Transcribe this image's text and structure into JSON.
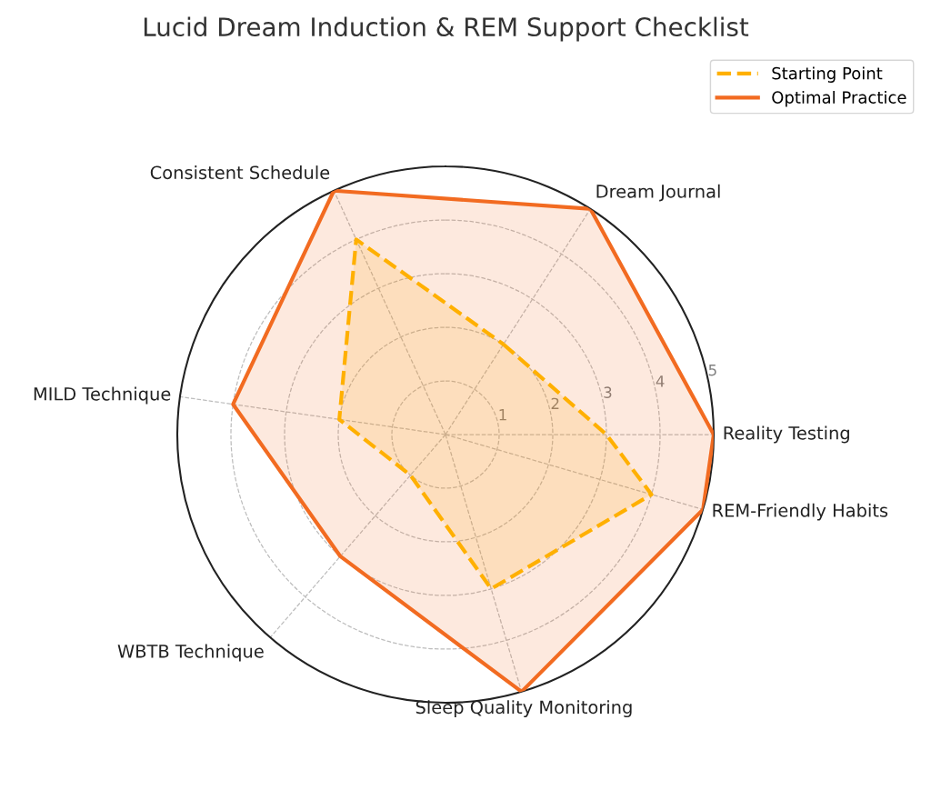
{
  "chart_data": {
    "type": "radar",
    "title": "Lucid Dream Induction & REM Support Checklist",
    "categories": [
      "Dream Journal",
      "Reality Testing",
      "REM-Friendly Habits",
      "Sleep Quality Monitoring",
      "WBTB Technique",
      "MILD Technique",
      "Consistent Schedule"
    ],
    "series": [
      {
        "name": "Starting Point",
        "color": "#ffb000",
        "line_style": "dashed",
        "values": [
          2,
          3,
          4,
          3,
          1,
          2,
          4
        ]
      },
      {
        "name": "Optimal Practice",
        "color": "#f26b21",
        "line_style": "solid",
        "values": [
          5,
          5,
          5,
          5,
          3,
          4,
          5
        ]
      }
    ],
    "ylim": [
      0,
      5
    ],
    "yticks": [
      1,
      2,
      3,
      4,
      5
    ],
    "grid": true,
    "legend": "top right"
  }
}
